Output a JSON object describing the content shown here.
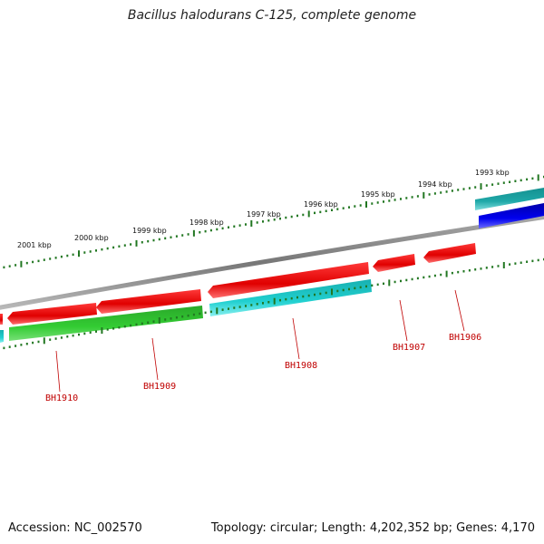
{
  "title": "Bacillus halodurans C-125, complete genome",
  "accession_text": "Accession: NC_002570",
  "summary_text": "Topology: circular; Length: 4,202,352 bp; Genes: 4,170",
  "scale": {
    "labels": [
      "1993 kbp",
      "1994 kbp",
      "1995 kbp",
      "1996 kbp",
      "1997 kbp",
      "1998 kbp",
      "1999 kbp",
      "2000 kbp",
      "2001 kbp"
    ]
  },
  "genes": [
    {
      "name": "BH1906",
      "color": "#ee1111"
    },
    {
      "name": "BH1907",
      "color": "#ee1111"
    },
    {
      "name": "BH1908",
      "color": "#ee1111"
    },
    {
      "name": "BH1909",
      "color": "#ee1111"
    },
    {
      "name": "BH1910",
      "color": "#ee1111"
    }
  ],
  "colors": {
    "forward_cds": "#ee1111",
    "reverse_green": "#33bb33",
    "reverse_cyan": "#22cccc",
    "teal": "#22aaaa",
    "blue": "#0000ee",
    "backbone": "#888888",
    "tick": "#227722",
    "label": "#c00000"
  }
}
